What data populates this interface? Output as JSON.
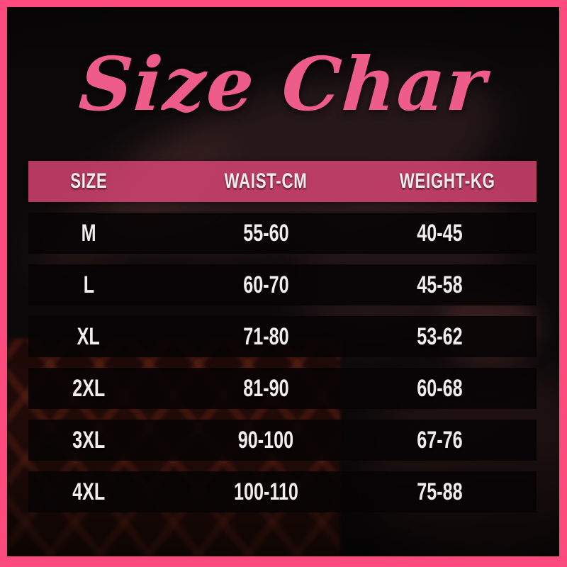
{
  "title": {
    "text": "Size Char"
  },
  "colors": {
    "frame_pink": "#fb4a7b",
    "title_pink": "#ee5c8a",
    "header_band": "#b23c60",
    "row_band": "#0a0507",
    "text_light": "#f3ecee"
  },
  "chart_data": {
    "type": "table",
    "title": "Size Char",
    "columns": [
      "SIZE",
      "WAIST-CM",
      "WEIGHT-KG"
    ],
    "rows": [
      [
        "M",
        "55-60",
        "40-45"
      ],
      [
        "L",
        "60-70",
        "45-58"
      ],
      [
        "XL",
        "71-80",
        "53-62"
      ],
      [
        "2XL",
        "81-90",
        "60-68"
      ],
      [
        "3XL",
        "90-100",
        "67-76"
      ],
      [
        "4XL",
        "100-110",
        "75-88"
      ]
    ],
    "layout": {
      "legend": "none",
      "grid": "off",
      "note": "size chart graphic over dark photo background with pink frame"
    }
  }
}
